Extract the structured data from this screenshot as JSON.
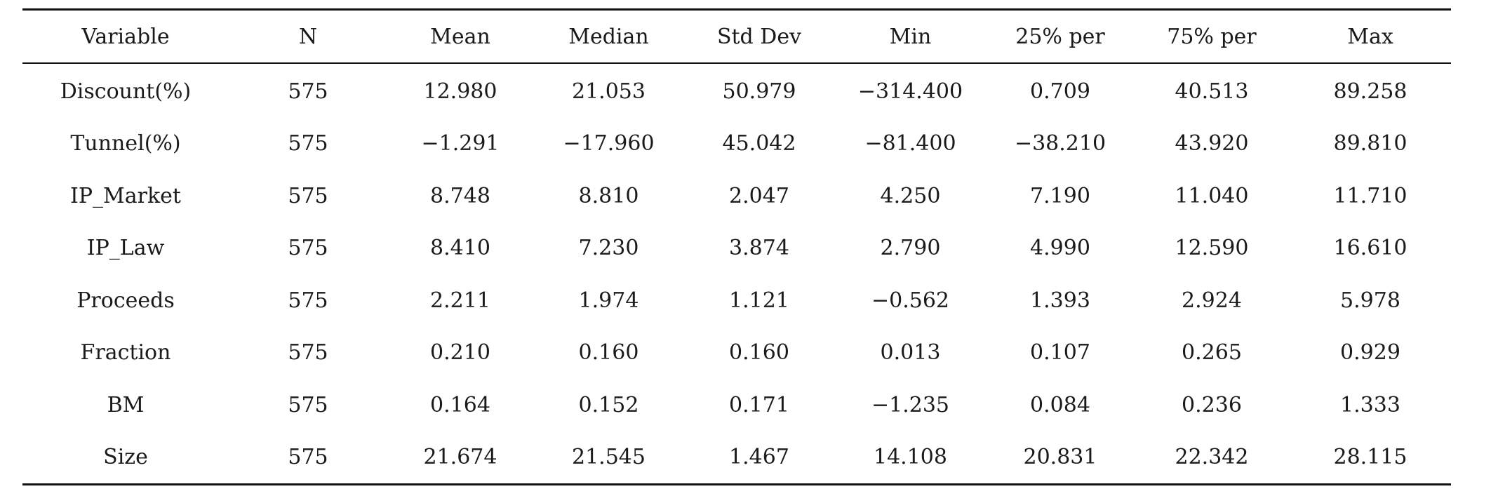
{
  "table": {
    "columns": [
      "Variable",
      "N",
      "Mean",
      "Median",
      "Std Dev",
      "Min",
      "25% per",
      "75% per",
      "Max"
    ],
    "rows": [
      [
        "Discount(%)",
        "575",
        "12.980",
        "21.053",
        "50.979",
        "−314.400",
        "0.709",
        "40.513",
        "89.258"
      ],
      [
        "Tunnel(%)",
        "575",
        "−1.291",
        "−17.960",
        "45.042",
        "−81.400",
        "−38.210",
        "43.920",
        "89.810"
      ],
      [
        "IP_Market",
        "575",
        "8.748",
        "8.810",
        "2.047",
        "4.250",
        "7.190",
        "11.040",
        "11.710"
      ],
      [
        "IP_Law",
        "575",
        "8.410",
        "7.230",
        "3.874",
        "2.790",
        "4.990",
        "12.590",
        "16.610"
      ],
      [
        "Proceeds",
        "575",
        "2.211",
        "1.974",
        "1.121",
        "−0.562",
        "1.393",
        "2.924",
        "5.978"
      ],
      [
        "Fraction",
        "575",
        "0.210",
        "0.160",
        "0.160",
        "0.013",
        "0.107",
        "0.265",
        "0.929"
      ],
      [
        "BM",
        "575",
        "0.164",
        "0.152",
        "0.171",
        "−1.235",
        "0.084",
        "0.236",
        "1.333"
      ],
      [
        "Size",
        "575",
        "21.674",
        "21.545",
        "1.467",
        "14.108",
        "20.831",
        "22.342",
        "28.115"
      ]
    ]
  }
}
